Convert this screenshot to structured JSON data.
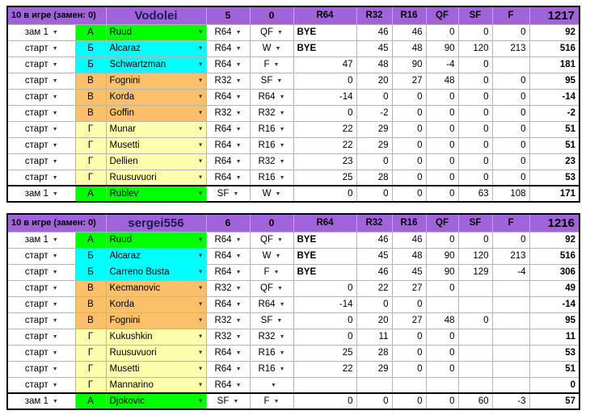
{
  "icons": {
    "dropdown": "▼"
  },
  "colors": {
    "header_bg": "#a163d9",
    "team_name": "#1b1b55",
    "groups": {
      "А": "#00ff00",
      "Б": "#00ffff",
      "В": "#fdc06a",
      "Г": "#feffac"
    }
  },
  "tables": [
    {
      "header": {
        "info": "10 в игре (замен: 0)",
        "team": "Vodolei",
        "stat1": "5",
        "stat2": "0",
        "rounds": [
          "R64",
          "R32",
          "R16",
          "QF",
          "SF",
          "F"
        ],
        "total": "1217"
      },
      "rows": [
        {
          "slot": "зам 1",
          "group": "А",
          "player": "Ruud",
          "round": "R64",
          "result": "QF",
          "pts": [
            "BYE",
            "46",
            "46",
            "0",
            "0",
            "0"
          ],
          "total": "92"
        },
        {
          "slot": "старт",
          "group": "Б",
          "player": "Alcaraz",
          "round": "R64",
          "result": "W",
          "pts": [
            "BYE",
            "45",
            "48",
            "90",
            "120",
            "213"
          ],
          "total": "516"
        },
        {
          "slot": "старт",
          "group": "Б",
          "player": "Schwartzman",
          "round": "R64",
          "result": "F",
          "pts": [
            "47",
            "48",
            "90",
            "-4",
            "0",
            ""
          ],
          "total": "181"
        },
        {
          "slot": "старт",
          "group": "В",
          "player": "Fognini",
          "round": "R32",
          "result": "SF",
          "pts": [
            "0",
            "20",
            "27",
            "48",
            "0",
            "0"
          ],
          "total": "95"
        },
        {
          "slot": "старт",
          "group": "В",
          "player": "Korda",
          "round": "R64",
          "result": "R64",
          "pts": [
            "-14",
            "0",
            "0",
            "0",
            "0",
            "0"
          ],
          "total": "-14"
        },
        {
          "slot": "старт",
          "group": "В",
          "player": "Goffin",
          "round": "R32",
          "result": "R32",
          "pts": [
            "0",
            "-2",
            "0",
            "0",
            "0",
            "0"
          ],
          "total": "-2"
        },
        {
          "slot": "старт",
          "group": "Г",
          "player": "Munar",
          "round": "R64",
          "result": "R16",
          "pts": [
            "22",
            "29",
            "0",
            "0",
            "0",
            "0"
          ],
          "total": "51"
        },
        {
          "slot": "старт",
          "group": "Г",
          "player": "Musetti",
          "round": "R64",
          "result": "R16",
          "pts": [
            "22",
            "29",
            "0",
            "0",
            "0",
            "0"
          ],
          "total": "51"
        },
        {
          "slot": "старт",
          "group": "Г",
          "player": "Dellien",
          "round": "R64",
          "result": "R32",
          "pts": [
            "23",
            "0",
            "0",
            "0",
            "0",
            "0"
          ],
          "total": "23"
        },
        {
          "slot": "старт",
          "group": "Г",
          "player": "Ruusuvuori",
          "round": "R64",
          "result": "R16",
          "pts": [
            "25",
            "28",
            "0",
            "0",
            "0",
            "0"
          ],
          "total": "53"
        },
        {
          "slot": "зам 1",
          "group": "А",
          "player": "Rublev",
          "round": "SF",
          "result": "W",
          "pts": [
            "0",
            "0",
            "0",
            "0",
            "63",
            "108"
          ],
          "total": "171",
          "separator": true
        }
      ]
    },
    {
      "header": {
        "info": "10 в игре (замен: 0)",
        "team": "sergei556",
        "stat1": "6",
        "stat2": "0",
        "rounds": [
          "R64",
          "R32",
          "R16",
          "QF",
          "SF",
          "F"
        ],
        "total": "1216"
      },
      "rows": [
        {
          "slot": "зам 1",
          "group": "А",
          "player": "Ruud",
          "round": "R64",
          "result": "QF",
          "pts": [
            "BYE",
            "46",
            "46",
            "0",
            "0",
            "0"
          ],
          "total": "92"
        },
        {
          "slot": "старт",
          "group": "Б",
          "player": "Alcaraz",
          "round": "R64",
          "result": "W",
          "pts": [
            "BYE",
            "45",
            "48",
            "90",
            "120",
            "213"
          ],
          "total": "516"
        },
        {
          "slot": "старт",
          "group": "Б",
          "player": "Carreno Busta",
          "round": "R64",
          "result": "F",
          "pts": [
            "BYE",
            "46",
            "45",
            "90",
            "129",
            "-4"
          ],
          "total": "306"
        },
        {
          "slot": "старт",
          "group": "В",
          "player": "Kecmanovic",
          "round": "R32",
          "result": "QF",
          "pts": [
            "0",
            "22",
            "27",
            "0",
            "",
            ""
          ],
          "total": "49"
        },
        {
          "slot": "старт",
          "group": "В",
          "player": "Korda",
          "round": "R64",
          "result": "R64",
          "pts": [
            "-14",
            "0",
            "0",
            "",
            "",
            ""
          ],
          "total": "-14"
        },
        {
          "slot": "старт",
          "group": "В",
          "player": "Fognini",
          "round": "R32",
          "result": "SF",
          "pts": [
            "0",
            "20",
            "27",
            "48",
            "0",
            ""
          ],
          "total": "95"
        },
        {
          "slot": "старт",
          "group": "Г",
          "player": "Kukushkin",
          "round": "R32",
          "result": "R32",
          "pts": [
            "0",
            "11",
            "0",
            "0",
            "",
            ""
          ],
          "total": "11"
        },
        {
          "slot": "старт",
          "group": "Г",
          "player": "Ruusuvuori",
          "round": "R64",
          "result": "R16",
          "pts": [
            "25",
            "28",
            "0",
            "0",
            "",
            ""
          ],
          "total": "53"
        },
        {
          "slot": "старт",
          "group": "Г",
          "player": "Musetti",
          "round": "R64",
          "result": "R16",
          "pts": [
            "22",
            "29",
            "0",
            "0",
            "",
            ""
          ],
          "total": "51"
        },
        {
          "slot": "старт",
          "group": "Г",
          "player": "Mannarino",
          "round": "R64",
          "result": "",
          "pts": [
            "",
            "",
            "",
            "",
            "",
            ""
          ],
          "total": "0"
        },
        {
          "slot": "зам 1",
          "group": "А",
          "player": "Djokovic",
          "round": "SF",
          "result": "F",
          "pts": [
            "0",
            "0",
            "0",
            "0",
            "60",
            "-3"
          ],
          "total": "57",
          "separator": true
        }
      ]
    }
  ]
}
